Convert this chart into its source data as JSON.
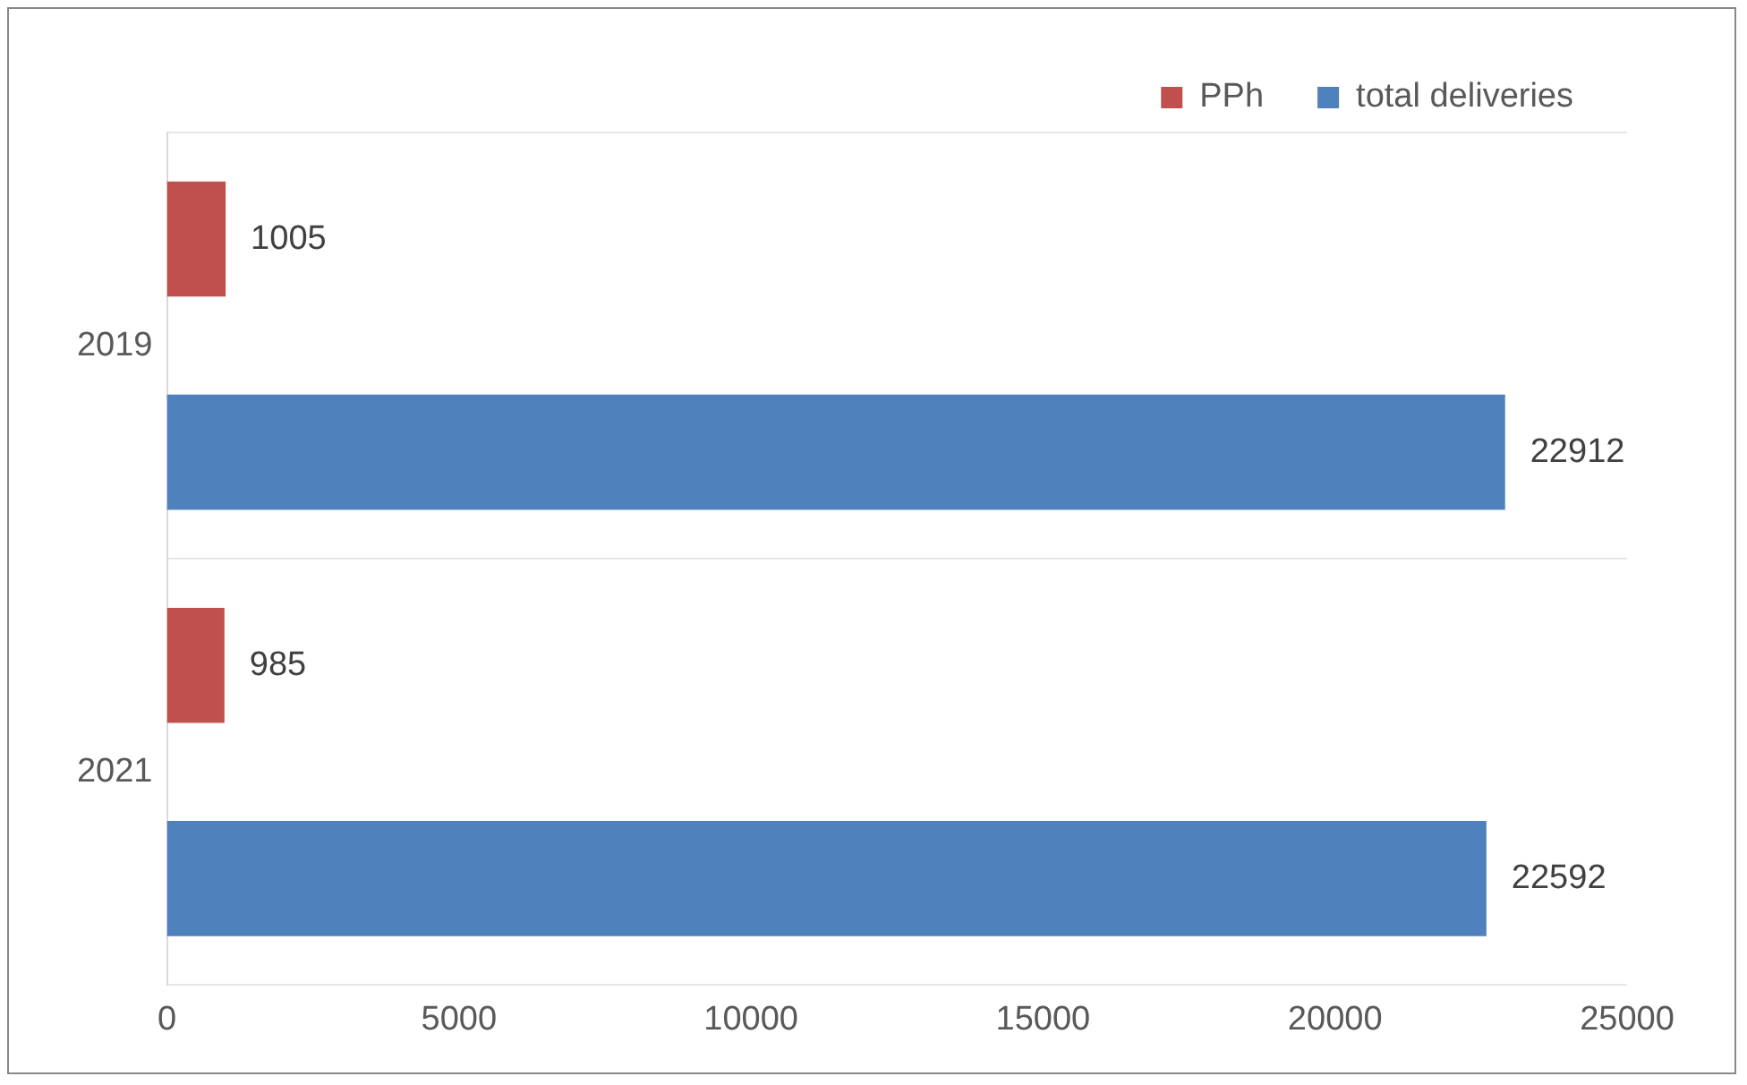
{
  "chart_data": {
    "type": "bar",
    "orientation": "horizontal",
    "categories": [
      "2019",
      "2021"
    ],
    "series": [
      {
        "name": "PPh",
        "color": "#c0504d",
        "values": [
          1005,
          985
        ]
      },
      {
        "name": "total deliveries",
        "color": "#4f81bd",
        "values": [
          22912,
          22592
        ]
      }
    ],
    "xlim": [
      0,
      25000
    ],
    "xticks": [
      0,
      5000,
      10000,
      15000,
      20000,
      25000
    ],
    "grid": "y",
    "legend": "top",
    "data_labels": true
  }
}
